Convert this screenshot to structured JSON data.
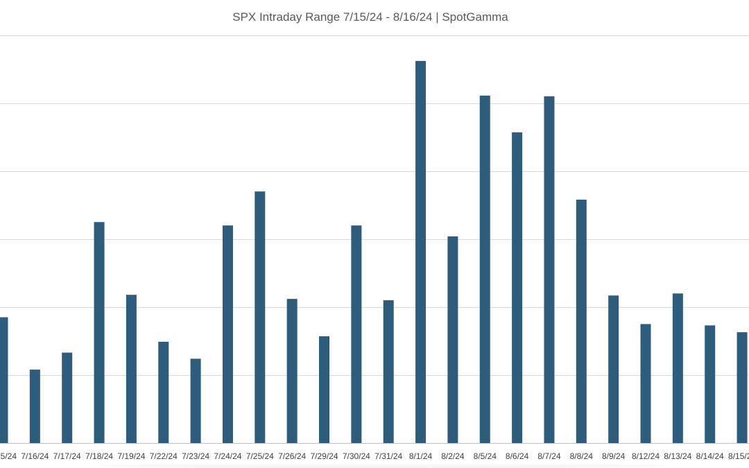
{
  "chart_data": {
    "type": "bar",
    "title": "SPX Intraday Range 7/15/24 - 8/16/24 | SpotGamma",
    "categories": [
      "7/15/24",
      "7/16/24",
      "7/17/24",
      "7/18/24",
      "7/19/24",
      "7/22/24",
      "7/23/24",
      "7/24/24",
      "7/25/24",
      "7/26/24",
      "7/29/24",
      "7/30/24",
      "7/31/24",
      "8/1/24",
      "8/2/24",
      "8/5/24",
      "8/6/24",
      "8/7/24",
      "8/8/24",
      "8/9/24",
      "8/12/24",
      "8/13/24",
      "8/14/24",
      "8/15/24"
    ],
    "values": [
      18.5,
      10.8,
      13.3,
      32.5,
      21.8,
      14.9,
      12.4,
      32.0,
      37.0,
      21.2,
      15.7,
      32.0,
      21.0,
      56.2,
      30.4,
      51.1,
      45.7,
      51.0,
      35.8,
      21.7,
      17.5,
      22.0,
      17.3,
      16.3
    ],
    "ylim": [
      0,
      60
    ],
    "ygrid_step": 10,
    "grid": true,
    "bar_color": "#2e5c7c"
  }
}
